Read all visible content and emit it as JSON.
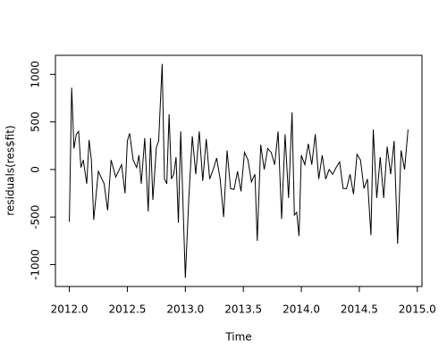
{
  "chart_data": {
    "type": "line",
    "x_label": "Time",
    "y_label": "residuals(res$fit)",
    "color": "#000000",
    "x": [
      2012.0,
      2012.02,
      2012.04,
      2012.06,
      2012.08,
      2012.1,
      2012.12,
      2012.15,
      2012.17,
      2012.19,
      2012.21,
      2012.25,
      2012.3,
      2012.33,
      2012.36,
      2012.4,
      2012.45,
      2012.48,
      2012.5,
      2012.52,
      2012.55,
      2012.58,
      2012.6,
      2012.62,
      2012.65,
      2012.68,
      2012.7,
      2012.72,
      2012.75,
      2012.77,
      2012.8,
      2012.82,
      2012.84,
      2012.86,
      2012.88,
      2012.9,
      2012.92,
      2012.94,
      2012.96,
      2013.0,
      2013.03,
      2013.06,
      2013.09,
      2013.12,
      2013.15,
      2013.18,
      2013.21,
      2013.24,
      2013.27,
      2013.3,
      2013.33,
      2013.36,
      2013.39,
      2013.42,
      2013.45,
      2013.48,
      2013.51,
      2013.54,
      2013.57,
      2013.6,
      2013.62,
      2013.65,
      2013.68,
      2013.71,
      2013.74,
      2013.77,
      2013.8,
      2013.83,
      2013.86,
      2013.89,
      2013.92,
      2013.94,
      2013.96,
      2013.98,
      2014.0,
      2014.03,
      2014.06,
      2014.09,
      2014.12,
      2014.15,
      2014.18,
      2014.21,
      2014.24,
      2014.27,
      2014.3,
      2014.33,
      2014.36,
      2014.39,
      2014.42,
      2014.45,
      2014.48,
      2014.51,
      2014.54,
      2014.57,
      2014.6,
      2014.62,
      2014.65,
      2014.68,
      2014.71,
      2014.74,
      2014.77,
      2014.8,
      2014.83,
      2014.86,
      2014.89,
      2014.92
    ],
    "values": [
      -550,
      860,
      220,
      370,
      400,
      20,
      100,
      -150,
      310,
      100,
      -530,
      -20,
      -150,
      -430,
      100,
      -80,
      50,
      -250,
      300,
      380,
      100,
      20,
      150,
      -150,
      330,
      -440,
      330,
      -320,
      230,
      300,
      1110,
      -100,
      -150,
      580,
      -100,
      -50,
      130,
      -560,
      400,
      -1140,
      -300,
      350,
      -50,
      400,
      -120,
      320,
      -100,
      0,
      120,
      -100,
      -500,
      200,
      -200,
      -210,
      -20,
      -230,
      180,
      100,
      -130,
      -50,
      -750,
      260,
      0,
      220,
      180,
      50,
      400,
      -520,
      370,
      -300,
      600,
      -480,
      -450,
      -700,
      150,
      50,
      270,
      50,
      370,
      -100,
      150,
      -100,
      0,
      -50,
      20,
      80,
      -200,
      -200,
      -50,
      -260,
      160,
      100,
      -200,
      -100,
      -690,
      420,
      -300,
      130,
      -300,
      240,
      -50,
      300,
      -780,
      200,
      0,
      420
    ],
    "xlim": [
      2011.88,
      2015.04
    ],
    "ylim": [
      -1230,
      1200
    ],
    "xticks": [
      {
        "value": 2012.0,
        "label": "2012.0"
      },
      2012.5,
      {
        "value": 2013.0,
        "label": "2013.0"
      },
      2013.5,
      {
        "value": 2014.0,
        "label": "2014.0"
      },
      2014.5,
      {
        "value": 2015.0,
        "label": "2015.0"
      }
    ],
    "yticks": [
      -1000,
      -500,
      0,
      500,
      1000
    ]
  }
}
